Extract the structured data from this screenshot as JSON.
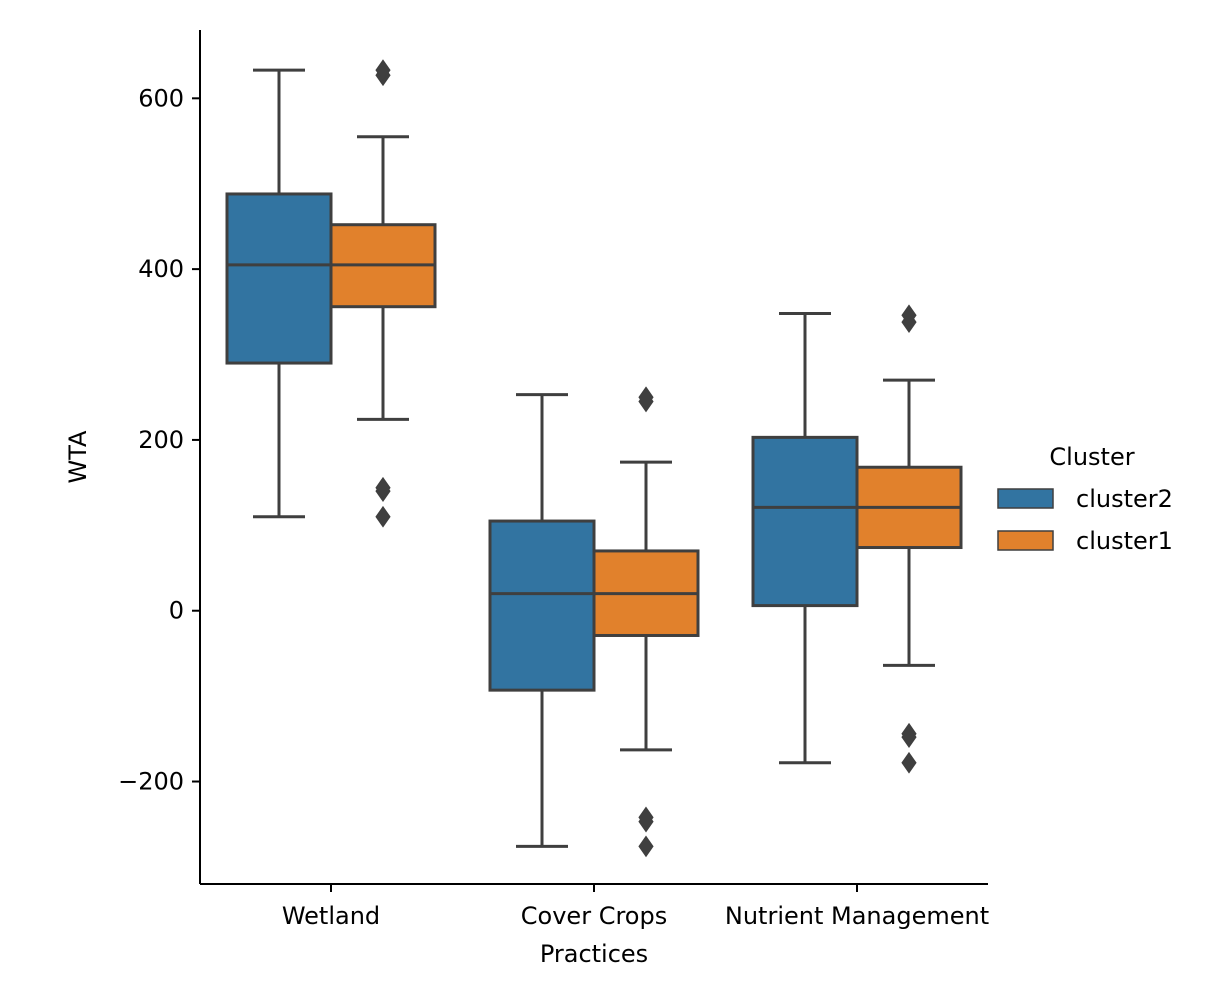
{
  "chart_data": {
    "type": "box",
    "title": "",
    "xlabel": "Practices",
    "ylabel": "WTA",
    "ylim": [
      -320,
      680
    ],
    "yticks": [
      -200,
      0,
      200,
      400,
      600
    ],
    "ytick_labels": [
      "−200",
      "0",
      "200",
      "400",
      "600"
    ],
    "grid": false,
    "categories": [
      "Wetland",
      "Cover Crops",
      "Nutrient Management"
    ],
    "legend": {
      "title": "Cluster",
      "position": "right"
    },
    "series": [
      {
        "name": "cluster2",
        "color": "#3274a1",
        "boxes": [
          {
            "category": "Wetland",
            "whisker_low": 110,
            "q1": 290,
            "median": 405,
            "q3": 488,
            "whisker_high": 633,
            "outliers": []
          },
          {
            "category": "Cover Crops",
            "whisker_low": -276,
            "q1": -93,
            "median": 20,
            "q3": 105,
            "whisker_high": 253,
            "outliers": []
          },
          {
            "category": "Nutrient Management",
            "whisker_low": -178,
            "q1": 6,
            "median": 121,
            "q3": 203,
            "whisker_high": 348,
            "outliers": []
          }
        ]
      },
      {
        "name": "cluster1",
        "color": "#e1812c",
        "boxes": [
          {
            "category": "Wetland",
            "whisker_low": 224,
            "q1": 356,
            "median": 405,
            "q3": 452,
            "whisker_high": 555,
            "outliers": [
              110,
              140,
              144,
              627,
              633
            ]
          },
          {
            "category": "Cover Crops",
            "whisker_low": -163,
            "q1": -29,
            "median": 20,
            "q3": 70,
            "whisker_high": 174,
            "outliers": [
              -276,
              -247,
              -242,
              245,
              250
            ]
          },
          {
            "category": "Nutrient Management",
            "whisker_low": -64,
            "q1": 74,
            "median": 121,
            "q3": 168,
            "whisker_high": 270,
            "outliers": [
              -178,
              -148,
              -144,
              338,
              346
            ]
          }
        ]
      }
    ]
  }
}
